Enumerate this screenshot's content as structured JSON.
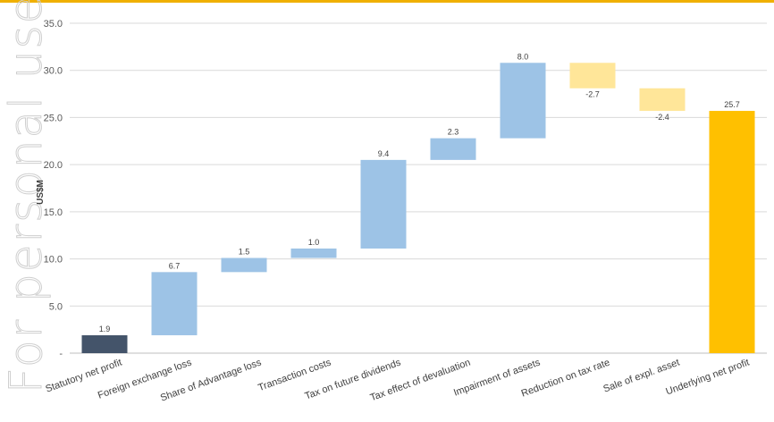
{
  "watermark": {
    "text": "For personal use only",
    "color": "#cfcfcf"
  },
  "header": {
    "rule_color": "#f0b000"
  },
  "chart_data": {
    "type": "bar",
    "subtype": "waterfall",
    "title": "",
    "xlabel": "",
    "ylabel": "US$M",
    "ylim": [
      0,
      35
    ],
    "yticks": [
      {
        "value": 0,
        "label": "-"
      },
      {
        "value": 5,
        "label": "5.0"
      },
      {
        "value": 10,
        "label": "10.0"
      },
      {
        "value": 15,
        "label": "15.0"
      },
      {
        "value": 20,
        "label": "20.0"
      },
      {
        "value": 25,
        "label": "25.0"
      },
      {
        "value": 30,
        "label": "30.0"
      },
      {
        "value": 35,
        "label": "35.0"
      }
    ],
    "grid": true,
    "categories": [
      "Statutory net profit",
      "Foreign exchange loss",
      "Share of Advantage loss",
      "Transaction costs",
      "Tax on future dividends",
      "Tax effect of devaluation",
      "Impairment of assets",
      "Reduction on tax rate",
      "Sale of expl. asset",
      "Underlying net profit"
    ],
    "bars": [
      {
        "start": 0,
        "end": 1.9,
        "label": "1.9",
        "kind": "total-start"
      },
      {
        "start": 1.9,
        "end": 8.6,
        "label": "6.7",
        "kind": "increase"
      },
      {
        "start": 8.6,
        "end": 10.1,
        "label": "1.5",
        "kind": "increase"
      },
      {
        "start": 10.1,
        "end": 11.1,
        "label": "1.0",
        "kind": "increase"
      },
      {
        "start": 11.1,
        "end": 20.5,
        "label": "9.4",
        "kind": "increase"
      },
      {
        "start": 20.5,
        "end": 22.8,
        "label": "2.3",
        "kind": "increase"
      },
      {
        "start": 22.8,
        "end": 30.8,
        "label": "8.0",
        "kind": "increase"
      },
      {
        "start": 30.8,
        "end": 28.1,
        "label": "-2.7",
        "kind": "decrease"
      },
      {
        "start": 28.1,
        "end": 25.7,
        "label": "-2.4",
        "kind": "decrease"
      },
      {
        "start": 0,
        "end": 25.7,
        "label": "25.7",
        "kind": "total-end"
      }
    ],
    "colors": {
      "total-start": "#44546a",
      "increase": "#9dc3e6",
      "decrease": "#ffe699",
      "total-end": "#ffc000",
      "grid": "#d9d9d9",
      "axis": "#bfbfbf"
    }
  }
}
